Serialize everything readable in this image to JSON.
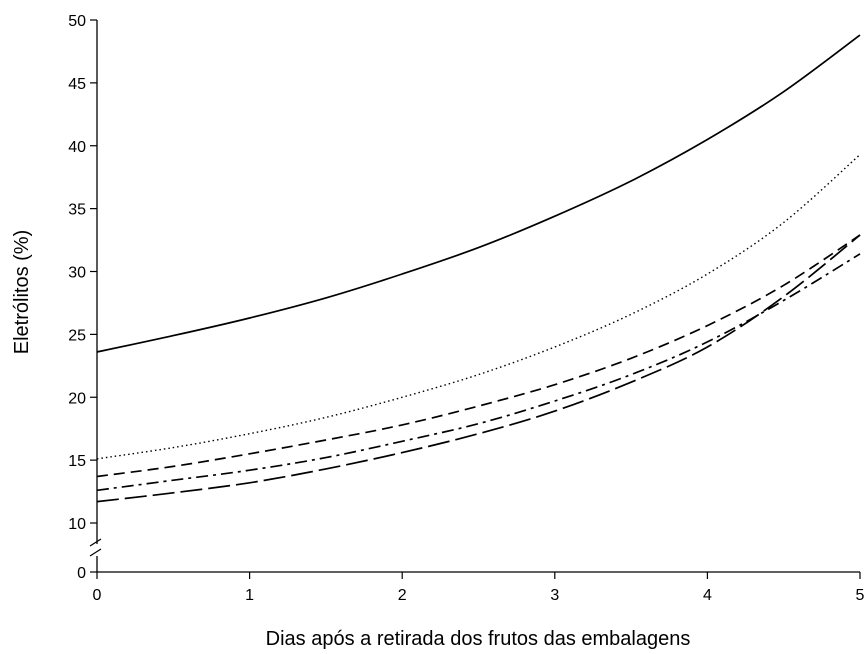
{
  "chart_data": {
    "type": "line",
    "title": "",
    "xlabel": "Dias após a retirada dos frutos das embalagens",
    "ylabel": "Eletrólitos (%)",
    "xlim": [
      0,
      5
    ],
    "ylim": [
      0,
      50
    ],
    "axis_break": "between 0 and 10 on y axis",
    "x_ticks": [
      0,
      1,
      2,
      3,
      4,
      5
    ],
    "y_ticks": [
      0,
      10,
      15,
      20,
      25,
      30,
      35,
      40,
      45,
      50
    ],
    "grid": false,
    "legend": "none",
    "x": [
      0,
      0.5,
      1,
      1.5,
      2,
      2.5,
      3,
      3.5,
      4,
      4.5,
      5
    ],
    "series": [
      {
        "style": "solid",
        "color": "#000000",
        "values": [
          23.6,
          24.9,
          26.3,
          27.9,
          29.8,
          31.9,
          34.4,
          37.2,
          40.5,
          44.3,
          48.8
        ]
      },
      {
        "style": "dotted",
        "color": "#000000",
        "values": [
          15.1,
          16.0,
          17.1,
          18.4,
          20.0,
          21.8,
          24.0,
          26.6,
          29.8,
          33.9,
          39.3
        ]
      },
      {
        "style": "short-dash",
        "color": "#000000",
        "values": [
          13.7,
          14.5,
          15.5,
          16.6,
          17.8,
          19.3,
          21.0,
          23.1,
          25.7,
          28.9,
          32.9
        ]
      },
      {
        "style": "dash-dot",
        "color": "#000000",
        "values": [
          12.6,
          13.4,
          14.2,
          15.2,
          16.5,
          17.9,
          19.7,
          21.8,
          24.4,
          27.7,
          31.4
        ]
      },
      {
        "style": "long-dash",
        "color": "#000000",
        "values": [
          11.7,
          12.4,
          13.2,
          14.3,
          15.6,
          17.1,
          18.9,
          21.2,
          24.0,
          28.0,
          32.9
        ]
      }
    ]
  }
}
